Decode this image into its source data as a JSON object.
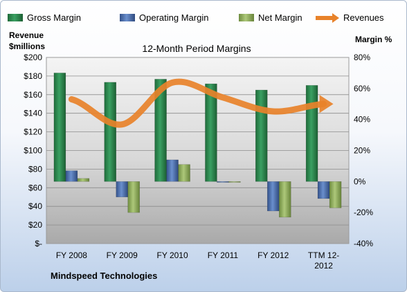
{
  "chart_data": {
    "type": "bar",
    "title": "12-Month Period Margins",
    "company": "Mindspeed Technologies",
    "left_axis_title": [
      "Revenue",
      "$millions"
    ],
    "right_axis_title": "Margin %",
    "left_ticks": [
      "$-",
      "$20",
      "$40",
      "$60",
      "$80",
      "$100",
      "$120",
      "$140",
      "$160",
      "$180",
      "$200"
    ],
    "right_ticks": [
      "-40%",
      "-20%",
      "0%",
      "20%",
      "40%",
      "60%",
      "80%"
    ],
    "left_range": [
      0,
      200
    ],
    "right_range": [
      -40,
      80
    ],
    "categories": [
      [
        "FY 2008"
      ],
      [
        "FY 2009"
      ],
      [
        "FY 2010"
      ],
      [
        "FY 2011"
      ],
      [
        "FY 2012"
      ],
      [
        "TTM 12-",
        "2012"
      ]
    ],
    "legend_position": "top",
    "grid": true,
    "series": [
      {
        "name": "Gross Margin",
        "axis": "right",
        "color": "#2e8b4e",
        "values": [
          70,
          64,
          66,
          63,
          59,
          62
        ]
      },
      {
        "name": "Operating Margin",
        "axis": "right",
        "color": "#4a6fb0",
        "values": [
          7,
          -10,
          14,
          -0.5,
          -19,
          -11
        ]
      },
      {
        "name": "Net Margin",
        "axis": "right",
        "color": "#92b060",
        "values": [
          2,
          -20,
          11,
          -0.3,
          -23,
          -17
        ]
      },
      {
        "name": "Revenues",
        "axis": "left",
        "color": "#e8822a",
        "values": [
          155,
          128,
          173,
          157,
          142,
          150
        ]
      }
    ]
  }
}
